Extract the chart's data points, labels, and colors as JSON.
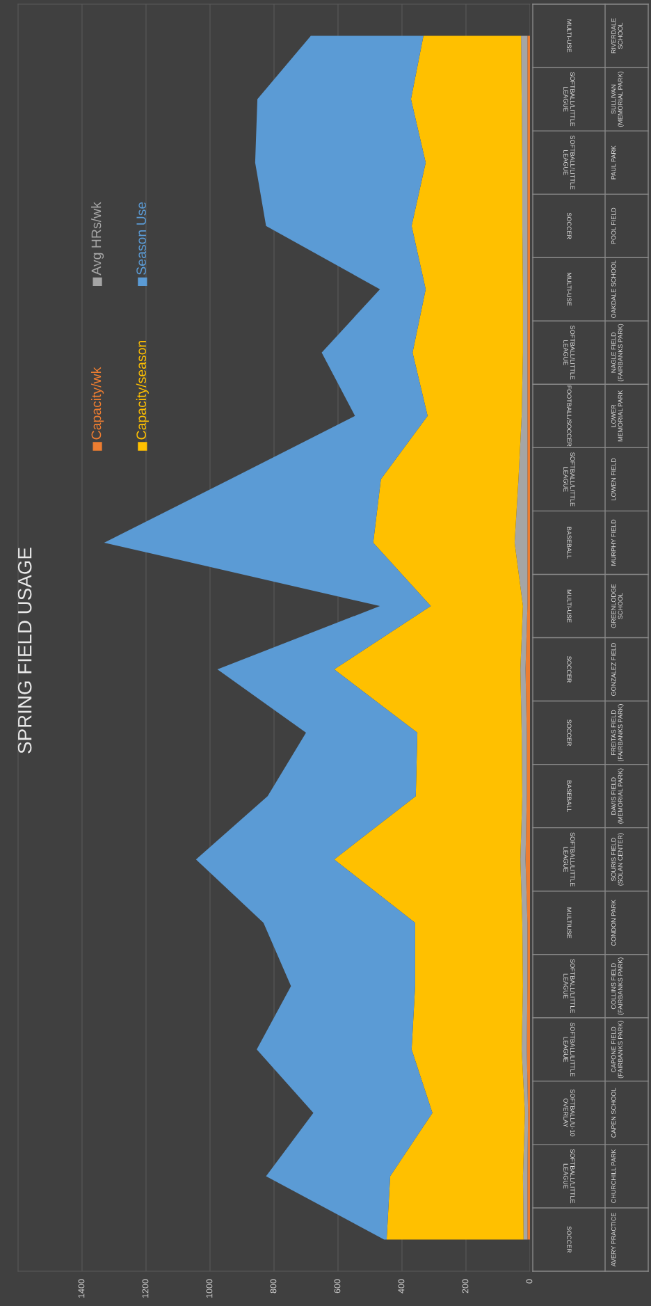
{
  "chart_data": {
    "type": "area",
    "title": "SPRING FIELD USAGE",
    "orientation": "horizontal",
    "stacked": true,
    "categories": [
      "RIVERDALE SCHOOL",
      "SULLIVAN (MEMORIAL PARK)",
      "PAUL PARK",
      "POOL FIELD",
      "OAKDALE SCHOOL",
      "NAGLE FIELD (FAIRBANKS PARK)",
      "LOWER MEMORIAL PARK",
      "LOWEN FIELD",
      "MURPHY FIELD",
      "GREENLODGE SCHOOL",
      "GONZALEZ FIELD",
      "FREITAS FIELD (FAIRBANKS PARK)",
      "DAVIS FIELD (MEMORIAL PARK)",
      "SOURIS FIELD (SOLAN CENTER)",
      "CONDON PARK",
      "COLLINS FIELD (FAIRBANKS PARK)",
      "CAPONE FIELD (FAIRBANKS PARK)",
      "CAPEN SCHOOL",
      "CHURCHILL PARK",
      "AVERY PRACTICE"
    ],
    "y2_categories": [
      "MULTI-USE",
      "SOFTBALL/LITTLE LEAGUE",
      "SOFTBALL/LITTLE LEAGUE",
      "SOCCER",
      "MULTI-USE",
      "SOFTBALL/LITTLE LEAGUE",
      "FOOTBALL/SOCCER",
      "SOFTBALL/LITTLE LEAGUE",
      "BASEBALL",
      "MULTI-USE",
      "SOCCER",
      "SOCCER",
      "BASEBALL",
      "SOFTBALL/LITTLE LEAGUE",
      "MULTIUSE",
      "SOFTBALL/LITTLE LEAGUE",
      "SOFTBALL/LITTLE LEAGUE",
      "SOFTBALL/U-10 OVERLAY",
      "SOFTBALL/LITTLE LEAGUE",
      "SOCCER"
    ],
    "series": [
      {
        "name": "Capacity/wk",
        "color": "#ed7d31",
        "values": [
          8,
          8,
          8,
          8,
          8,
          8,
          8,
          8,
          8,
          8,
          14,
          10,
          10,
          14,
          8,
          8,
          10,
          6,
          8,
          8
        ]
      },
      {
        "name": "Avg HRs/wk",
        "color": "#a5a5a5",
        "values": [
          20,
          18,
          16,
          16,
          14,
          14,
          18,
          28,
          40,
          14,
          16,
          16,
          14,
          16,
          16,
          14,
          16,
          10,
          14,
          12
        ]
      },
      {
        "name": "Capacity/season",
        "color": "#ffc000",
        "values": [
          305,
          346,
          302,
          346,
          304,
          345,
          294,
          430,
          442,
          288,
          582,
          326,
          333,
          582,
          335,
          337,
          344,
          289,
          415,
          428
        ]
      },
      {
        "name": "Season Use",
        "color": "#5b9bd5",
        "values": [
          352,
          480,
          533,
          455,
          143,
          284,
          227,
          471,
          841,
          159,
          365,
          348,
          463,
          432,
          474,
          388,
          484,
          372,
          388,
          8
        ]
      }
    ],
    "xlim": [
      1600,
      0
    ],
    "xticks": [
      0,
      200,
      400,
      600,
      800,
      1000,
      1200,
      1400
    ],
    "grid": "x",
    "legend": "top left"
  }
}
